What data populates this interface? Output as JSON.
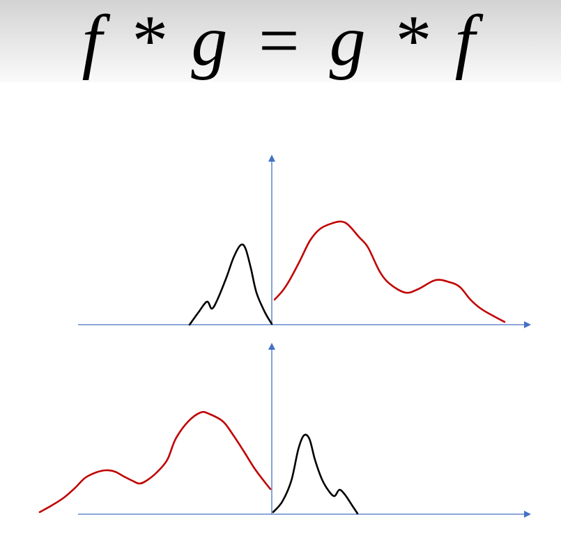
{
  "title": "f * g = g * f",
  "colors": {
    "axis": "#4472C4",
    "f_curve": "#C00000",
    "g_curve": "#000000"
  }
}
